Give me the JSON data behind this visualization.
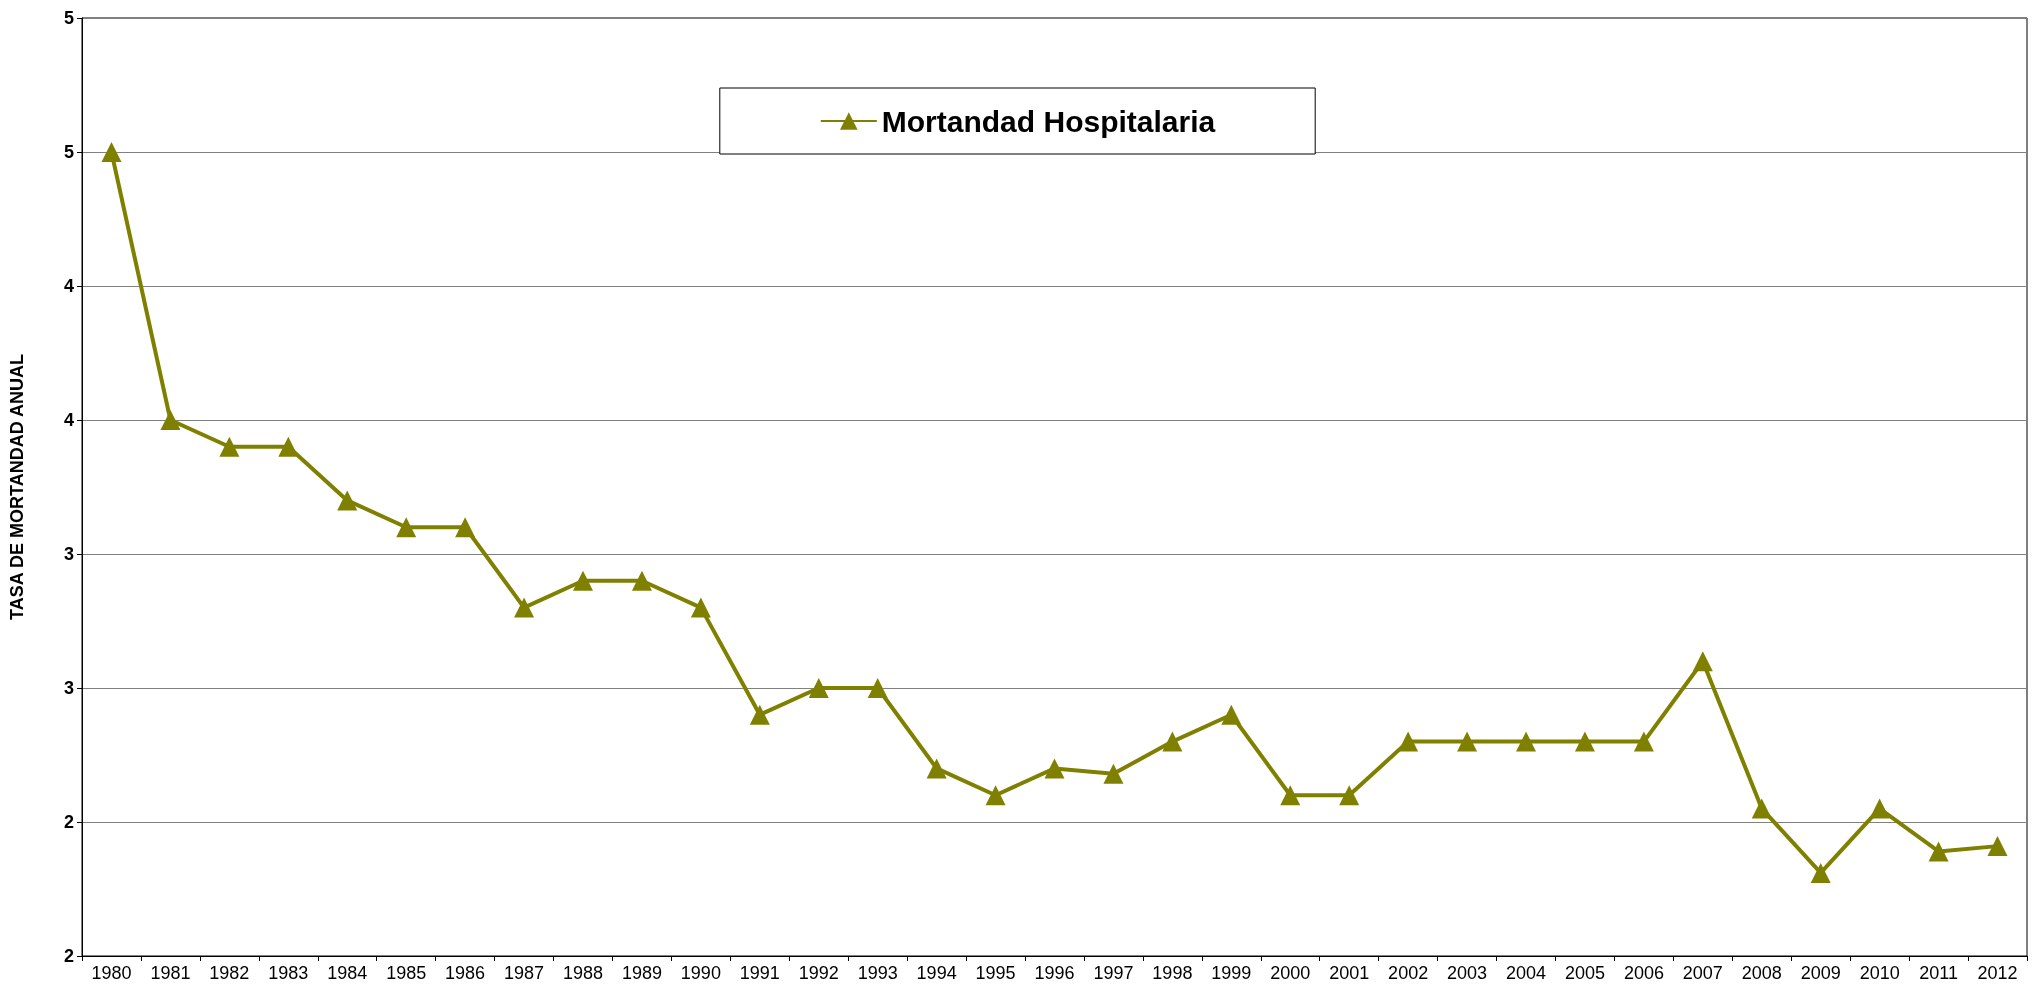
{
  "chart_data": {
    "type": "line",
    "ylabel": "TASA DE MORTANDAD ANUAL",
    "categories": [
      "1980",
      "1981",
      "1982",
      "1983",
      "1984",
      "1985",
      "1986",
      "1987",
      "1988",
      "1989",
      "1990",
      "1991",
      "1992",
      "1993",
      "1994",
      "1995",
      "1996",
      "1997",
      "1998",
      "1999",
      "2000",
      "2001",
      "2002",
      "2003",
      "2004",
      "2005",
      "2006",
      "2007",
      "2008",
      "2009",
      "2010",
      "2011",
      "2012"
    ],
    "series": [
      {
        "name": "Mortandad Hospitalaria",
        "color": "#808000",
        "values": [
          4.5,
          3.5,
          3.4,
          3.4,
          3.2,
          3.1,
          3.1,
          2.8,
          2.9,
          2.9,
          2.8,
          2.4,
          2.5,
          2.5,
          2.2,
          2.1,
          2.2,
          2.18,
          2.3,
          2.4,
          2.1,
          2.1,
          2.3,
          2.3,
          2.3,
          2.3,
          2.3,
          2.6,
          2.05,
          1.81,
          2.05,
          1.89,
          1.91
        ]
      }
    ],
    "ylim": [
      1.5,
      5
    ],
    "yticks": [
      {
        "value": 1.5,
        "label": "2"
      },
      {
        "value": 2,
        "label": "2"
      },
      {
        "value": 2.5,
        "label": "3"
      },
      {
        "value": 3,
        "label": "3"
      },
      {
        "value": 3.5,
        "label": "4"
      },
      {
        "value": 4,
        "label": "4"
      },
      {
        "value": 4.5,
        "label": "5"
      },
      {
        "value": 5,
        "label": "5"
      }
    ],
    "grid": "y",
    "legend": "top",
    "marker": "triangle",
    "line_style": "solid"
  }
}
